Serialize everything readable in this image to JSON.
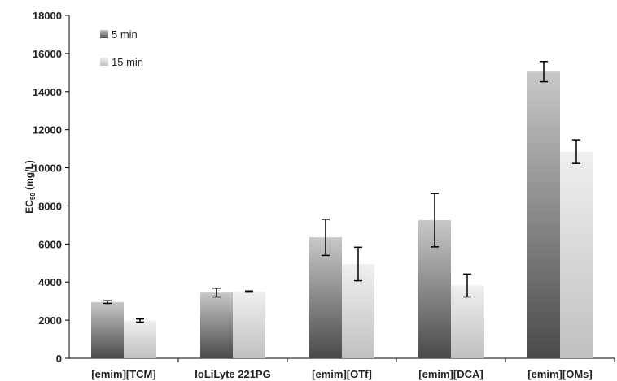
{
  "chart_data": {
    "type": "bar",
    "categories": [
      "[emim][TCM]",
      "IoLiLyte 221PG",
      "[emim][OTf]",
      "[emim][DCA]",
      "[emim][OMs]"
    ],
    "series": [
      {
        "name": "5 min",
        "values": [
          2950,
          3450,
          6350,
          7250,
          15050
        ],
        "error": [
          70,
          230,
          950,
          1400,
          530
        ],
        "color_top": "#c8c8c8",
        "color_bottom": "#4a4a4a"
      },
      {
        "name": "15 min",
        "values": [
          1980,
          3500,
          4950,
          3820,
          10850
        ],
        "error": [
          80,
          30,
          880,
          600,
          620
        ],
        "color_top": "#f0f0f0",
        "color_bottom": "#c0c0c0"
      }
    ],
    "ylabel_main": "EC",
    "ylabel_sub": "50",
    "ylabel_unit": " (mg/L)",
    "ylim": [
      0,
      18000
    ],
    "yticks": [
      0,
      2000,
      4000,
      6000,
      8000,
      10000,
      12000,
      14000,
      16000,
      18000
    ],
    "legend_position": "top-left",
    "grid": false
  }
}
